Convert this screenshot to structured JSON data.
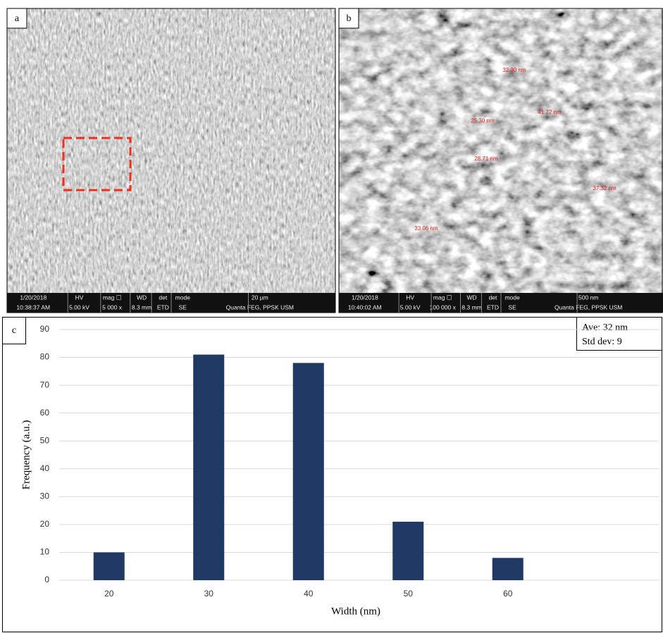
{
  "images": [
    {
      "label": "a",
      "info_bar": [
        [
          "1/20/2018",
          "10:38:37 AM"
        ],
        [
          "HV",
          "5.00 kV"
        ],
        [
          "mag ☐",
          "5 000 x"
        ],
        [
          "WD",
          "8.3 mm"
        ],
        [
          "det",
          "ETD"
        ],
        [
          "mode",
          "SE"
        ],
        [
          "20 µm",
          "Quanta FEG, PPSK USM"
        ]
      ]
    },
    {
      "label": "b",
      "info_bar": [
        [
          "1/20/2018",
          "10:40:02 AM"
        ],
        [
          "HV",
          "5.00 kV"
        ],
        [
          "mag ☐",
          "100 000 x"
        ],
        [
          "WD",
          "8.3 mm"
        ],
        [
          "det",
          "ETD"
        ],
        [
          "mode",
          "SE"
        ],
        [
          "500 nm",
          "Quanta FEG, PPSK USM"
        ]
      ],
      "measurements": [
        "32.30 nm",
        "25.30 nm",
        "41.72 nm",
        "28.71 nm",
        "37.32 nm",
        "33.06 nm"
      ]
    }
  ],
  "chart_data": {
    "type": "bar",
    "panel_label": "c",
    "x_label": "Width (nm)",
    "y_label": "Frequency (a.u.)",
    "annotations": [
      "Ave: 32 nm",
      "Std dev: 9"
    ],
    "categories": [
      "20",
      "30",
      "40",
      "50",
      "60"
    ],
    "values": [
      10,
      81,
      78,
      21,
      8
    ],
    "color": "#1f3864",
    "ylim": [
      0,
      90
    ],
    "yticks": [
      0,
      10,
      20,
      30,
      40,
      50,
      60,
      70,
      80,
      90
    ],
    "grid": true
  }
}
